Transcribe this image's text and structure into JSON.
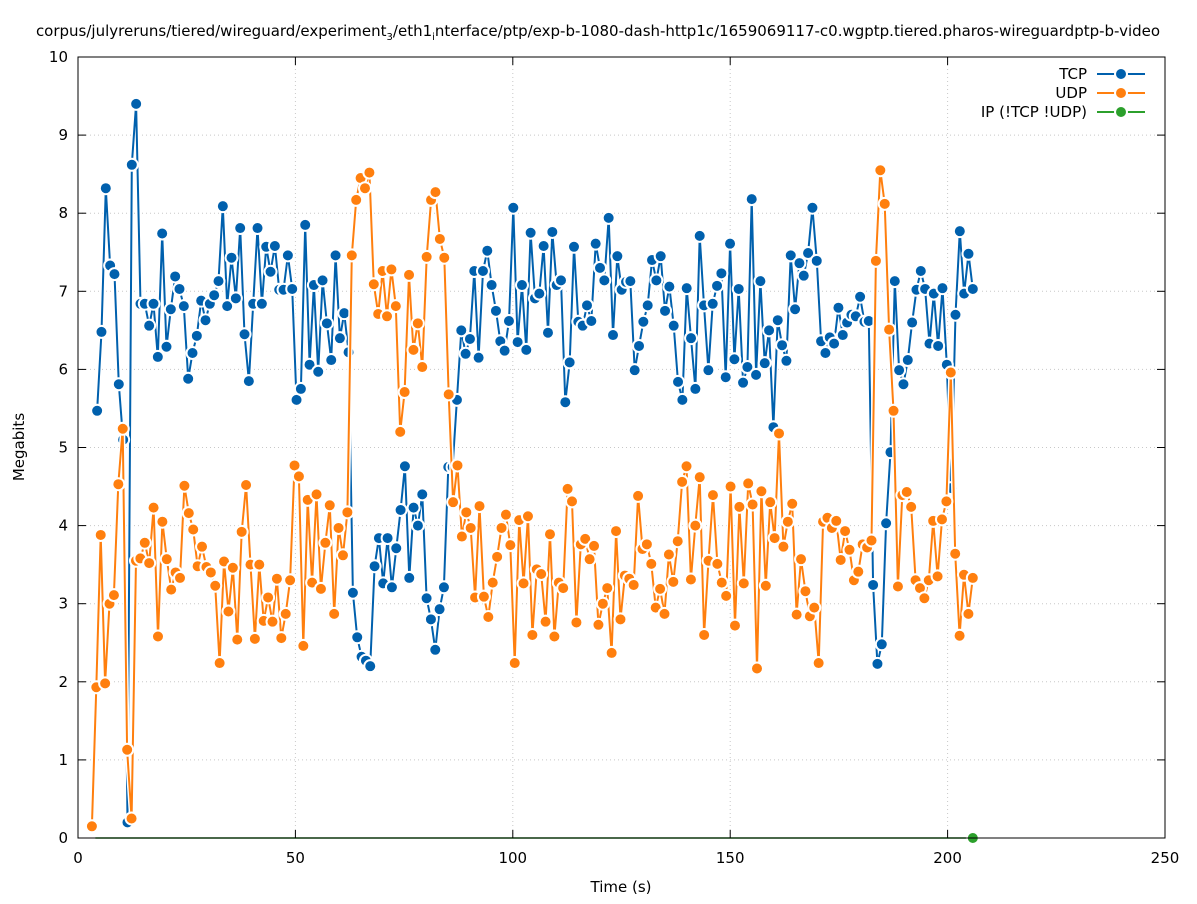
{
  "chart_data": {
    "type": "line",
    "title": "corpus/julyreruns/tiered/wireguard/experiment_3/eth1_interface/ptp/exp-b-1080-dash-http1c/1659069117-c0.wgptp.tiered.pharos-wireguardptp-b-video",
    "xlabel": "Time (s)",
    "ylabel": "Megabits",
    "xlim": [
      0,
      250
    ],
    "ylim": [
      0,
      10
    ],
    "xticks": [
      0,
      50,
      100,
      150,
      200,
      250
    ],
    "yticks": [
      0,
      1,
      2,
      3,
      4,
      5,
      6,
      7,
      8,
      9,
      10
    ],
    "grid": true,
    "legend_position": "top-right",
    "series": [
      {
        "name": "TCP",
        "color": "#0060ad",
        "x_start": 4.4,
        "x_end": 205.8,
        "values": [
          5.47,
          6.48,
          8.32,
          7.33,
          7.22,
          5.81,
          5.1,
          0.2,
          8.62,
          9.4,
          6.84,
          6.84,
          6.56,
          6.84,
          6.16,
          7.74,
          6.29,
          6.77,
          7.19,
          7.03,
          6.81,
          5.88,
          6.21,
          6.43,
          6.88,
          6.63,
          6.84,
          6.95,
          7.13,
          8.09,
          6.81,
          7.43,
          6.91,
          7.81,
          6.45,
          5.85,
          6.84,
          7.81,
          6.84,
          7.57,
          7.25,
          7.58,
          7.02,
          7.02,
          7.46,
          7.03,
          5.61,
          5.75,
          7.85,
          6.06,
          7.08,
          5.97,
          7.14,
          6.59,
          6.12,
          7.46,
          6.4,
          6.72,
          6.22,
          3.14,
          2.57,
          2.32,
          2.27,
          2.2,
          3.48,
          3.84,
          3.26,
          3.84,
          3.21,
          3.71,
          4.2,
          4.76,
          3.33,
          4.23,
          4.0,
          4.4,
          3.07,
          2.8,
          2.41,
          2.93,
          3.21,
          4.75,
          4.75,
          5.61,
          6.5,
          6.2,
          6.39,
          7.26,
          6.15,
          7.26,
          7.52,
          7.08,
          6.75,
          6.36,
          6.24,
          6.62,
          8.07,
          6.35,
          7.08,
          6.25,
          7.75,
          6.91,
          6.97,
          7.58,
          6.47,
          7.76,
          7.08,
          7.14,
          5.58,
          6.09,
          7.57,
          6.61,
          6.56,
          6.82,
          6.62,
          7.61,
          7.3,
          7.14,
          7.94,
          6.44,
          7.45,
          7.02,
          7.12,
          7.13,
          5.99,
          6.3,
          6.61,
          6.82,
          7.4,
          7.14,
          7.45,
          6.75,
          7.06,
          6.56,
          5.84,
          5.61,
          7.04,
          6.4,
          5.75,
          7.71,
          6.82,
          5.99,
          6.84,
          7.07,
          7.23,
          5.9,
          7.61,
          6.13,
          7.03,
          5.83,
          6.03,
          8.18,
          5.93,
          7.13,
          6.08,
          6.5,
          5.26,
          6.63,
          6.31,
          6.11,
          7.46,
          6.77,
          7.36,
          7.2,
          7.49,
          8.07,
          7.39,
          6.36,
          6.21,
          6.41,
          6.33,
          6.79,
          6.44,
          6.6,
          6.7,
          6.68,
          6.93,
          6.61,
          6.62,
          3.24,
          2.23,
          2.48,
          4.03,
          4.94,
          7.13,
          5.99,
          5.81,
          6.12,
          6.6,
          7.02,
          7.26,
          7.03,
          6.33,
          6.97,
          6.3,
          7.04,
          6.06,
          4.48,
          6.7,
          7.77,
          6.97,
          7.48,
          7.03
        ]
      },
      {
        "name": "UDP",
        "color": "#ff7f0e",
        "x_start": 3.2,
        "x_end": 205.8,
        "values": [
          0.15,
          1.93,
          3.88,
          1.98,
          3.0,
          3.11,
          4.53,
          5.24,
          1.13,
          0.25,
          3.55,
          3.58,
          3.78,
          3.52,
          4.23,
          2.58,
          4.05,
          3.57,
          3.18,
          3.4,
          3.33,
          4.51,
          4.16,
          3.95,
          3.48,
          3.73,
          3.47,
          3.4,
          3.23,
          2.24,
          3.54,
          2.9,
          3.46,
          2.54,
          3.92,
          4.52,
          3.5,
          2.55,
          3.5,
          2.78,
          3.08,
          2.77,
          3.32,
          2.56,
          2.87,
          3.3,
          4.77,
          4.63,
          2.46,
          4.33,
          3.27,
          4.4,
          3.19,
          3.78,
          4.26,
          2.87,
          3.97,
          3.62,
          4.17,
          7.46,
          8.17,
          8.45,
          8.32,
          8.52,
          7.09,
          6.71,
          7.26,
          6.68,
          7.28,
          6.81,
          5.2,
          5.71,
          7.21,
          6.25,
          6.59,
          6.03,
          7.44,
          8.17,
          8.27,
          7.67,
          7.43,
          5.68,
          4.3,
          4.77,
          3.86,
          4.17,
          3.97,
          3.08,
          4.25,
          3.09,
          2.83,
          3.27,
          3.6,
          3.97,
          4.14,
          3.75,
          2.24,
          4.07,
          3.26,
          4.12,
          2.6,
          3.44,
          3.38,
          2.77,
          3.89,
          2.58,
          3.27,
          3.2,
          4.47,
          4.31,
          2.76,
          3.76,
          3.83,
          3.57,
          3.74,
          2.73,
          3.0,
          3.2,
          2.37,
          3.93,
          2.8,
          3.36,
          3.32,
          3.24,
          4.38,
          3.7,
          3.76,
          3.51,
          2.95,
          3.19,
          2.87,
          3.63,
          3.28,
          3.8,
          4.56,
          4.76,
          3.31,
          4.0,
          4.62,
          2.6,
          3.55,
          4.39,
          3.51,
          3.27,
          3.1,
          4.5,
          2.72,
          4.24,
          3.26,
          4.54,
          4.27,
          2.17,
          4.44,
          3.23,
          4.3,
          3.84,
          5.18,
          3.73,
          4.05,
          4.28,
          2.86,
          3.57,
          3.16,
          2.84,
          2.95,
          2.24,
          4.05,
          4.1,
          3.97,
          4.06,
          3.56,
          3.93,
          3.69,
          3.3,
          3.41,
          3.76,
          3.72,
          3.81,
          7.39,
          8.55,
          8.12,
          6.51,
          5.47,
          3.22,
          4.39,
          4.43,
          4.24,
          3.3,
          3.2,
          3.07,
          3.3,
          4.06,
          3.35,
          4.08,
          4.31,
          5.96,
          3.64,
          2.59,
          3.37,
          2.87,
          3.33
        ]
      },
      {
        "name": "IP (!TCP  !UDP)",
        "color": "#2ca02c",
        "x": [
          205.8
        ],
        "values": [
          0
        ]
      }
    ]
  }
}
